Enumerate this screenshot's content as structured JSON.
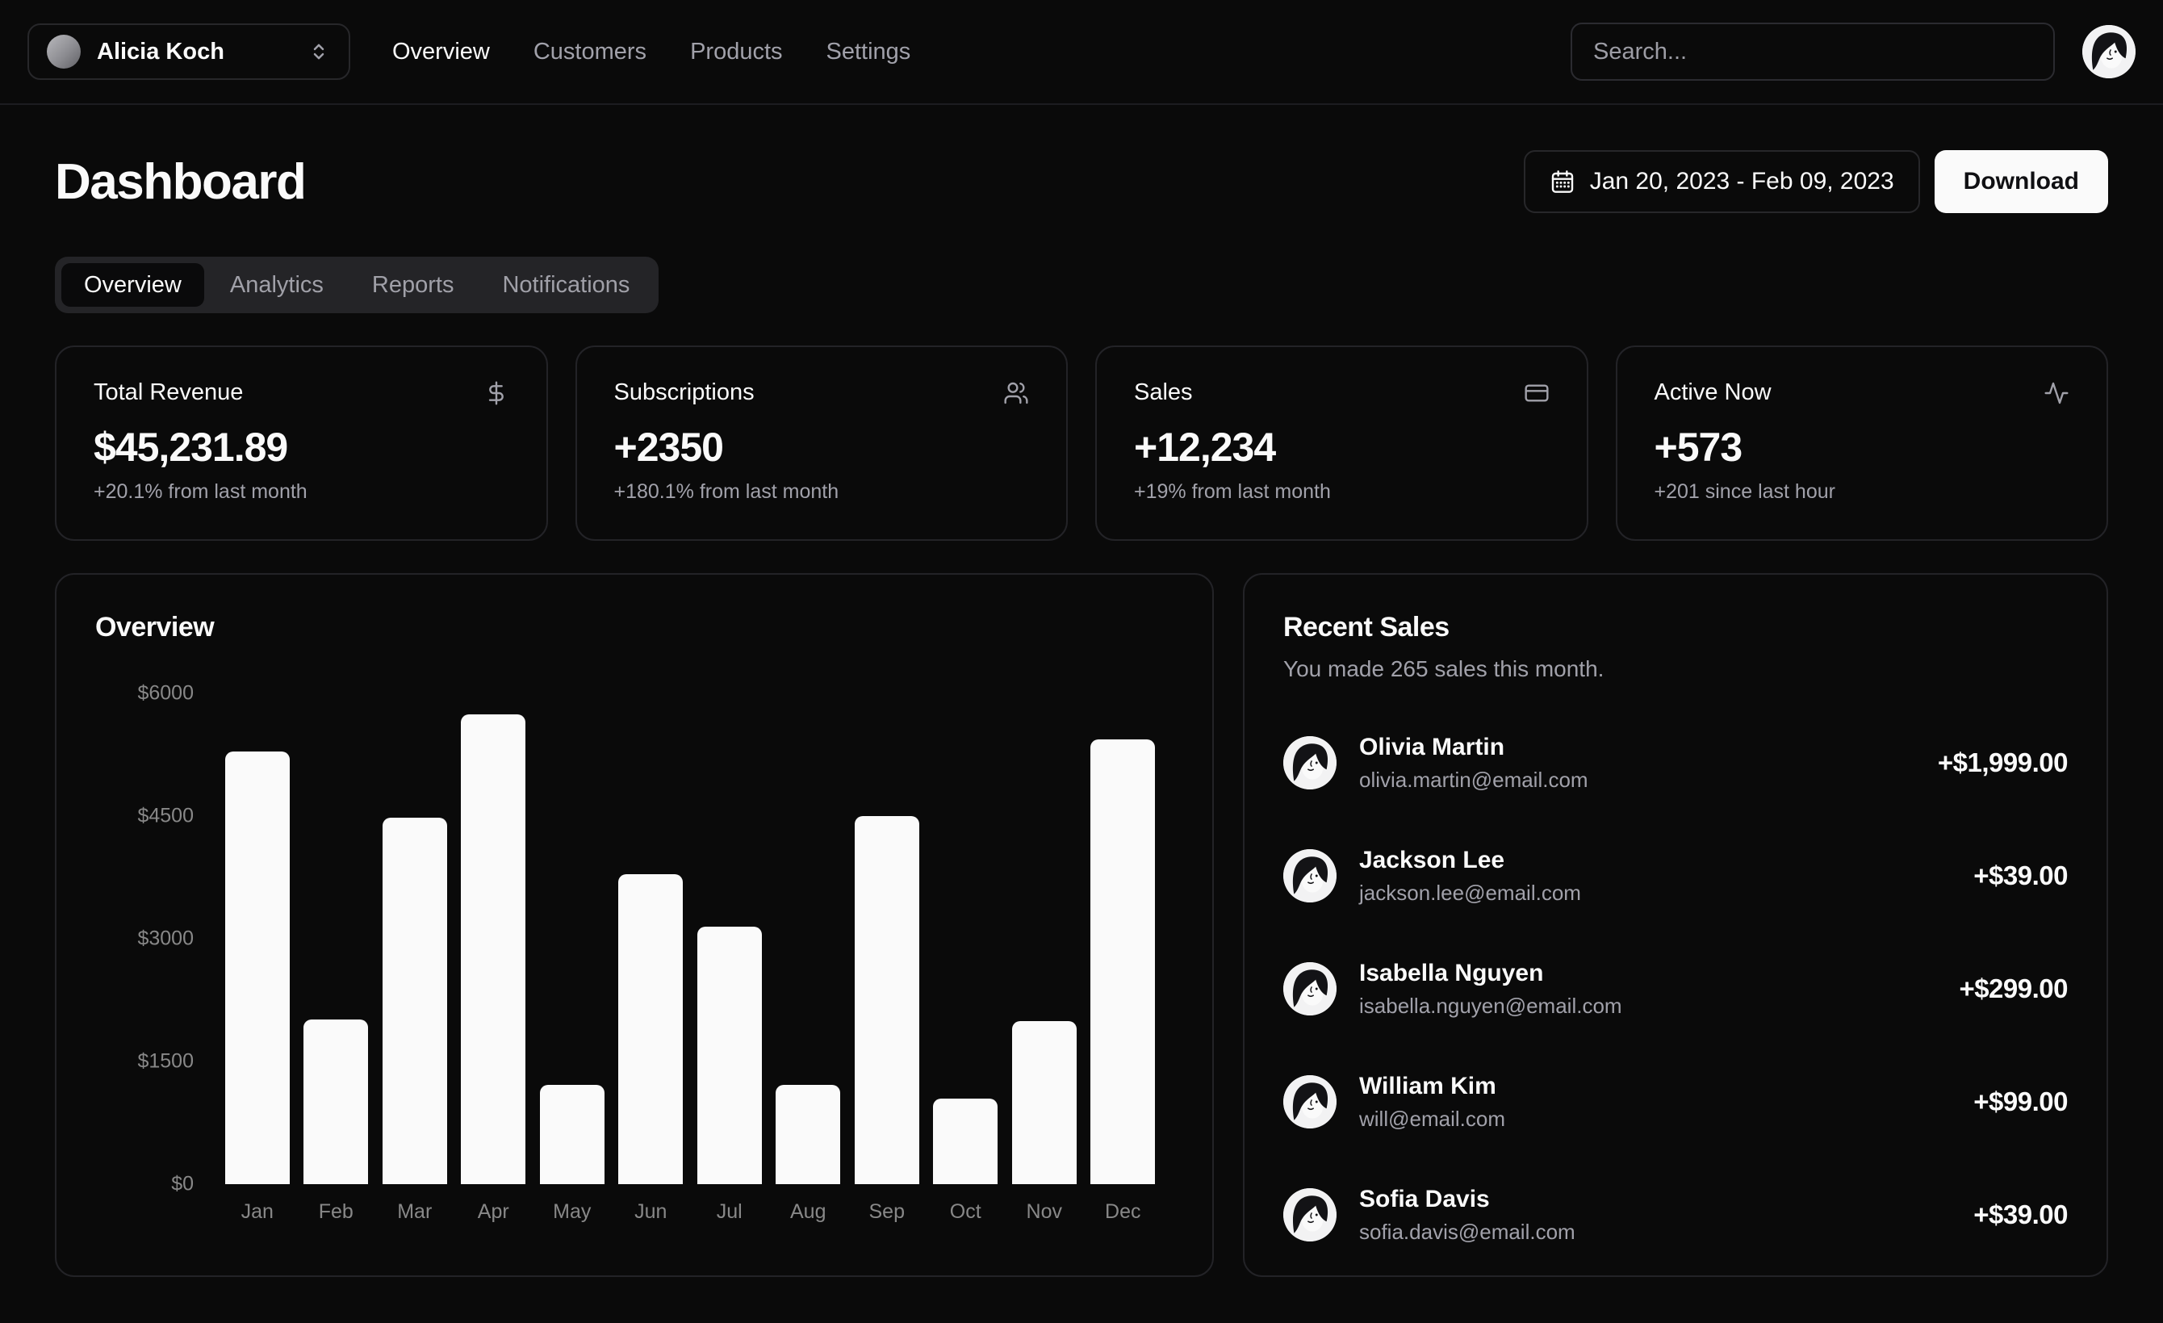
{
  "header": {
    "team_switcher": {
      "name": "Alicia Koch"
    },
    "nav": [
      {
        "label": "Overview",
        "active": true
      },
      {
        "label": "Customers",
        "active": false
      },
      {
        "label": "Products",
        "active": false
      },
      {
        "label": "Settings",
        "active": false
      }
    ],
    "search": {
      "placeholder": "Search..."
    }
  },
  "page": {
    "title": "Dashboard",
    "date_range": "Jan 20, 2023 - Feb 09, 2023",
    "download_label": "Download"
  },
  "tabs": [
    {
      "label": "Overview",
      "active": true
    },
    {
      "label": "Analytics",
      "active": false
    },
    {
      "label": "Reports",
      "active": false
    },
    {
      "label": "Notifications",
      "active": false
    }
  ],
  "stat_cards": [
    {
      "title": "Total Revenue",
      "icon": "dollar-sign",
      "value": "$45,231.89",
      "change": "+20.1% from last month"
    },
    {
      "title": "Subscriptions",
      "icon": "users",
      "value": "+2350",
      "change": "+180.1% from last month"
    },
    {
      "title": "Sales",
      "icon": "credit-card",
      "value": "+12,234",
      "change": "+19% from last month"
    },
    {
      "title": "Active Now",
      "icon": "activity",
      "value": "+573",
      "change": "+201 since last hour"
    }
  ],
  "chart_data": {
    "type": "bar",
    "title": "Overview",
    "categories": [
      "Jan",
      "Feb",
      "Mar",
      "Apr",
      "May",
      "Jun",
      "Jul",
      "Aug",
      "Sep",
      "Oct",
      "Nov",
      "Dec"
    ],
    "values": [
      5290,
      2010,
      4480,
      5740,
      1210,
      3790,
      3150,
      1210,
      4500,
      1050,
      1990,
      5440
    ],
    "xlabel": "",
    "ylabel": "",
    "ylim": [
      0,
      6000
    ],
    "ytick_labels": [
      "$6000",
      "$4500",
      "$3000",
      "$1500",
      "$0"
    ],
    "bar_color": "#fafafa",
    "grid": false,
    "legend": false
  },
  "recent_sales": {
    "title": "Recent Sales",
    "subtitle": "You made 265 sales this month.",
    "items": [
      {
        "name": "Olivia Martin",
        "email": "olivia.martin@email.com",
        "amount": "+$1,999.00"
      },
      {
        "name": "Jackson Lee",
        "email": "jackson.lee@email.com",
        "amount": "+$39.00"
      },
      {
        "name": "Isabella Nguyen",
        "email": "isabella.nguyen@email.com",
        "amount": "+$299.00"
      },
      {
        "name": "William Kim",
        "email": "will@email.com",
        "amount": "+$99.00"
      },
      {
        "name": "Sofia Davis",
        "email": "sofia.davis@email.com",
        "amount": "+$39.00"
      }
    ]
  },
  "colors": {
    "background": "#0a0a0a",
    "foreground": "#fafafa",
    "border": "#27272a",
    "muted_text": "#a1a1aa",
    "chart_tick": "#888888",
    "bar": "#fafafa",
    "tabs_bg": "#242427",
    "download_bg": "#fafafa",
    "download_text": "#101013"
  }
}
